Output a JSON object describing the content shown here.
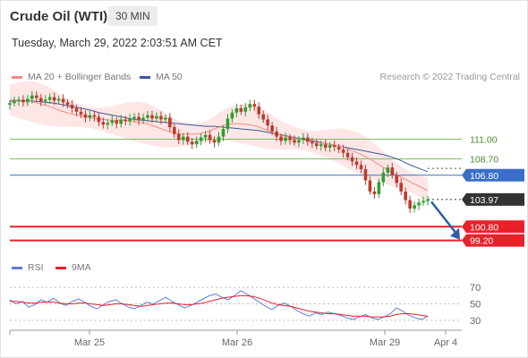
{
  "header": {
    "instrument": "Crude Oil (WTI)",
    "timeframe": "30 MIN",
    "datetime": "Tuesday, March 29, 2022 2:03:51 AM CET"
  },
  "legend": {
    "ma20_label": "MA 20 + Bollinger Bands",
    "ma20_color": "#f28b82",
    "ma50_label": "MA 50",
    "ma50_color": "#3a5a98",
    "rsi_label": "RSI",
    "rsi_color": "#5b7fd6",
    "ma9_label": "9MA",
    "ma9_color": "#e8202a"
  },
  "credit": "Research © 2022 Trading Central",
  "chart_data": [
    {
      "type": "line",
      "title": "Crude Oil (WTI) 30 MIN",
      "ylim": [
        97.8,
        117.0
      ],
      "x_labels": [
        "Mar 25",
        "Mar 26",
        "Mar 29",
        "Apr 4"
      ],
      "series": [
        {
          "name": "Price",
          "values": [
            115.2,
            115.4,
            115.6,
            115.3,
            115.7,
            116.1,
            115.8,
            115.4,
            115.6,
            115.9,
            115.5,
            115.7,
            115.3,
            115.0,
            114.6,
            114.2,
            113.9,
            113.5,
            113.8,
            113.6,
            113.0,
            112.7,
            112.9,
            113.2,
            112.8,
            113.3,
            113.1,
            113.4,
            113.6,
            113.2,
            113.5,
            113.8,
            113.4,
            113.7,
            113.3,
            113.5,
            112.4,
            111.6,
            110.9,
            111.3,
            110.7,
            110.4,
            110.8,
            111.2,
            111.5,
            110.9,
            110.6,
            111.3,
            112.2,
            113.4,
            114.1,
            114.6,
            114.2,
            114.7,
            115.1,
            114.8,
            113.9,
            113.3,
            112.6,
            111.9,
            111.3,
            110.8,
            111.2,
            110.9,
            110.6,
            110.9,
            111.2,
            110.7,
            110.5,
            110.2,
            110.4,
            110.0,
            110.3,
            110.1,
            109.8,
            109.4,
            108.9,
            108.4,
            108.0,
            107.5,
            106.2,
            104.9,
            104.6,
            106.0,
            107.1,
            107.7,
            106.8,
            105.9,
            104.9,
            103.9,
            102.9,
            103.3,
            103.6,
            103.8,
            103.97
          ]
        },
        {
          "name": "MA 20",
          "values": [
            115.6,
            115.5,
            115.5,
            115.3,
            115.0,
            114.7,
            114.3,
            114.0,
            113.8,
            113.6,
            113.4,
            113.3,
            113.2,
            113.2,
            113.1,
            113.0,
            112.8,
            112.5,
            112.1,
            111.8,
            111.6,
            111.6,
            111.6,
            111.8,
            112.2,
            112.6,
            112.8,
            112.8,
            112.7,
            112.5,
            112.1,
            111.7,
            111.4,
            111.2,
            111.0,
            110.8,
            110.6,
            110.5,
            110.3,
            110.1,
            109.7,
            109.3,
            108.8,
            108.2,
            107.6,
            107.0,
            106.5,
            106.0,
            105.5,
            105.0
          ]
        },
        {
          "name": "MA 50",
          "values": [
            115.4,
            115.5,
            115.5,
            115.4,
            115.3,
            115.2,
            115.0,
            114.8,
            114.6,
            114.4,
            114.1,
            113.9,
            113.7,
            113.5,
            113.3,
            113.2,
            113.1,
            113.0,
            112.9,
            112.8,
            112.7,
            112.6,
            112.5,
            112.5,
            112.4,
            112.3,
            112.2,
            112.1,
            112.0,
            111.8,
            111.6,
            111.4,
            111.2,
            111.0,
            110.8,
            110.6,
            110.4,
            110.2,
            110.0,
            109.8,
            109.6,
            109.4,
            109.2,
            108.9,
            108.5,
            108.0,
            107.6,
            107.2
          ]
        }
      ],
      "levels": [
        {
          "value": 111.0,
          "label": "111.00",
          "kind": "resistance"
        },
        {
          "value": 108.7,
          "label": "108.70",
          "kind": "resistance"
        },
        {
          "value": 106.8,
          "label": "106.80",
          "kind": "pivot"
        },
        {
          "value": 103.97,
          "label": "103.97",
          "kind": "last"
        },
        {
          "value": 100.8,
          "label": "100.80",
          "kind": "support"
        },
        {
          "value": 99.2,
          "label": "99.20",
          "kind": "support"
        }
      ],
      "colors": {
        "resistance": "#7cbf5a",
        "pivot": "#3a6fc9",
        "last": "#333333",
        "support": "#e8202a",
        "band": "#fde3e3",
        "up": "#2e9e2e",
        "down": "#c0392b"
      }
    },
    {
      "type": "line",
      "title": "RSI",
      "ylim": [
        20,
        80
      ],
      "ticks": [
        70,
        50,
        30
      ],
      "series": [
        {
          "name": "RSI",
          "values": [
            55,
            50,
            53,
            46,
            49,
            55,
            52,
            57,
            51,
            48,
            53,
            56,
            52,
            47,
            44,
            49,
            53,
            55,
            50,
            46,
            44,
            48,
            52,
            50,
            54,
            58,
            53,
            49,
            45,
            48,
            52,
            56,
            60,
            62,
            58,
            55,
            60,
            66,
            62,
            57,
            52,
            47,
            43,
            48,
            51,
            47,
            42,
            38,
            35,
            39,
            37,
            40,
            38,
            36,
            33,
            31,
            34,
            37,
            33,
            31,
            34,
            38,
            45,
            41,
            36,
            33,
            31,
            35
          ]
        },
        {
          "name": "9MA",
          "values": [
            53,
            53,
            52,
            51,
            51,
            52,
            52,
            52,
            51,
            50,
            50,
            51,
            51,
            50,
            49,
            48,
            49,
            50,
            50,
            49,
            48,
            47,
            48,
            49,
            50,
            51,
            51,
            50,
            49,
            49,
            50,
            51,
            53,
            55,
            57,
            58,
            59,
            60,
            60,
            59,
            57,
            54,
            51,
            49,
            48,
            47,
            45,
            43,
            41,
            40,
            39,
            38,
            38,
            37,
            36,
            35,
            35,
            35,
            34,
            34,
            34,
            35,
            37,
            38,
            38,
            37,
            36,
            35
          ]
        }
      ]
    }
  ]
}
